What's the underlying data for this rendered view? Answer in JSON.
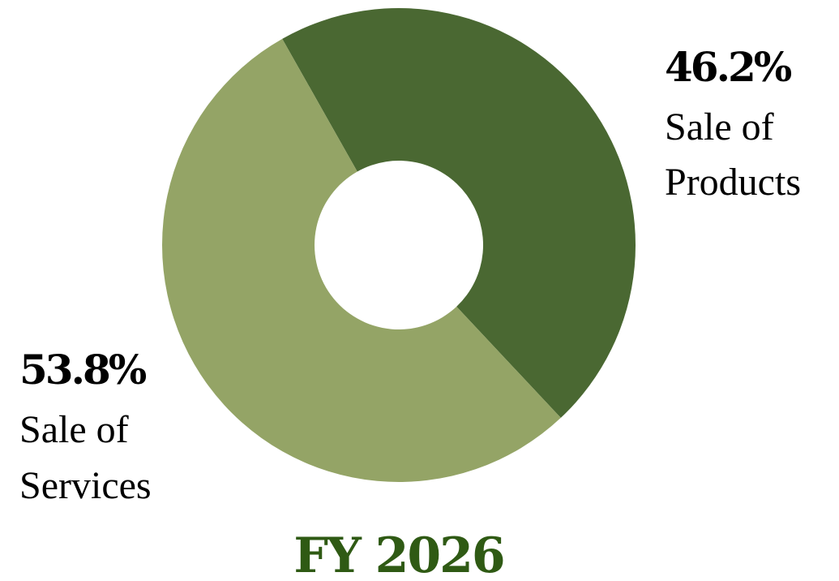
{
  "chart_data": {
    "type": "pie",
    "style": "donut",
    "title": "FY 2026",
    "title_color": "#2f5a14",
    "slices": [
      {
        "label_lines": [
          "Sale of",
          "Products"
        ],
        "value": 46.2,
        "value_label": "46.2%",
        "color": "#4a6832"
      },
      {
        "label_lines": [
          "Sale of",
          "Services"
        ],
        "value": 53.8,
        "value_label": "53.8%",
        "color": "#94a466"
      }
    ]
  }
}
